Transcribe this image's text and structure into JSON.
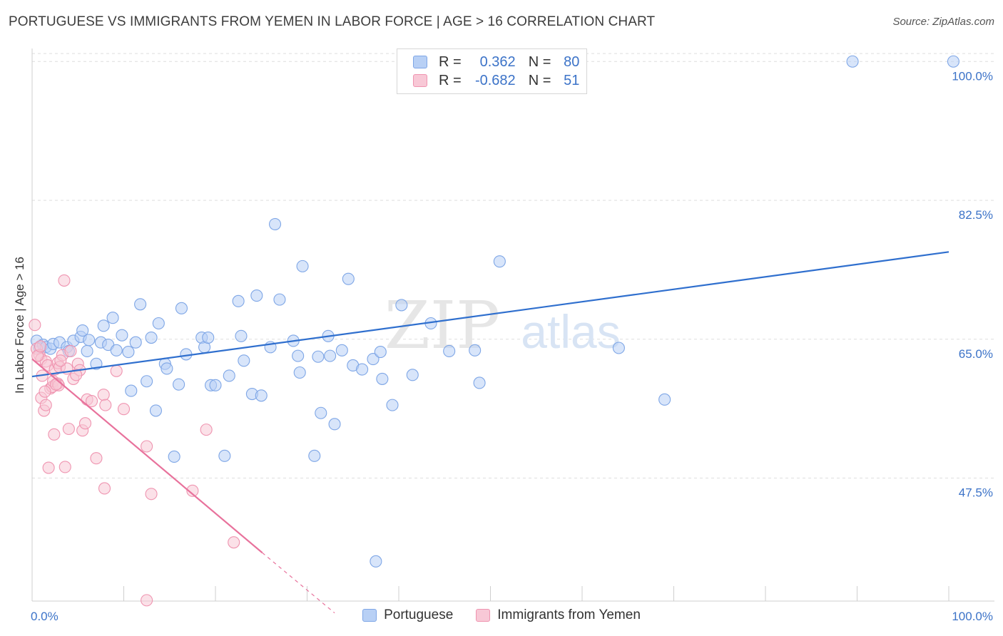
{
  "header": {
    "title": "PORTUGUESE VS IMMIGRANTS FROM YEMEN IN LABOR FORCE | AGE > 16 CORRELATION CHART",
    "source": "Source: ZipAtlas.com"
  },
  "watermark": {
    "zip": "ZIP",
    "atlas": "atlas"
  },
  "legend": {
    "rows": [
      {
        "r_label": "R =",
        "r_value": "0.362",
        "n_label": "N =",
        "n_value": "80"
      },
      {
        "r_label": "R =",
        "r_value": "-0.682",
        "n_label": "N =",
        "n_value": "51"
      }
    ]
  },
  "bottom_legend": {
    "series1": "Portuguese",
    "series2": "Immigrants from Yemen"
  },
  "colors": {
    "blue_fill": "#b8d0f5",
    "blue_stroke": "#7ea6e6",
    "blue_line": "#2f6fce",
    "pink_fill": "#f8c8d6",
    "pink_stroke": "#ef94b0",
    "pink_line": "#e8729c",
    "tick_text": "#3c73c8",
    "grid": "#dedede"
  },
  "chart_data": {
    "type": "scatter",
    "title": "PORTUGUESE VS IMMIGRANTS FROM YEMEN IN LABOR FORCE | AGE > 16 CORRELATION CHART",
    "xlabel": "",
    "ylabel": "In Labor Force | Age > 16",
    "xlim": [
      0,
      100
    ],
    "ylim": [
      32,
      102
    ],
    "x_tick_labels": [
      "0.0%",
      "100.0%"
    ],
    "y_ticks": [
      47.5,
      65.0,
      82.5,
      100.0
    ],
    "y_tick_labels": [
      "47.5%",
      "65.0%",
      "82.5%",
      "100.0%"
    ],
    "grid": true,
    "legend_position": "top-center",
    "series": [
      {
        "name": "Portuguese",
        "r": 0.362,
        "n": 80,
        "trend": {
          "x": [
            0,
            100
          ],
          "y": [
            60.3,
            76.0
          ]
        },
        "points": [
          [
            0.5,
            64.8
          ],
          [
            0.8,
            63.9
          ],
          [
            1.2,
            64.3
          ],
          [
            1.5,
            64.0
          ],
          [
            2.0,
            63.8
          ],
          [
            2.3,
            64.4
          ],
          [
            3.0,
            64.6
          ],
          [
            3.8,
            64.0
          ],
          [
            4.0,
            63.5
          ],
          [
            4.5,
            64.8
          ],
          [
            5.3,
            65.3
          ],
          [
            5.5,
            66.1
          ],
          [
            6.0,
            63.5
          ],
          [
            6.2,
            64.9
          ],
          [
            7.0,
            61.9
          ],
          [
            7.5,
            64.6
          ],
          [
            7.8,
            66.7
          ],
          [
            8.3,
            64.3
          ],
          [
            8.8,
            67.7
          ],
          [
            9.2,
            63.6
          ],
          [
            9.8,
            65.5
          ],
          [
            10.5,
            63.4
          ],
          [
            10.8,
            58.5
          ],
          [
            11.3,
            64.6
          ],
          [
            11.8,
            69.4
          ],
          [
            12.5,
            59.7
          ],
          [
            13.0,
            65.2
          ],
          [
            13.5,
            56.0
          ],
          [
            13.8,
            67.0
          ],
          [
            14.5,
            61.9
          ],
          [
            14.7,
            61.3
          ],
          [
            15.5,
            50.2
          ],
          [
            16.0,
            59.3
          ],
          [
            16.3,
            68.9
          ],
          [
            16.8,
            63.1
          ],
          [
            18.5,
            65.2
          ],
          [
            18.8,
            64.0
          ],
          [
            19.2,
            65.2
          ],
          [
            19.5,
            59.2
          ],
          [
            20.0,
            59.2
          ],
          [
            21.0,
            50.3
          ],
          [
            21.5,
            60.4
          ],
          [
            22.5,
            69.8
          ],
          [
            22.8,
            65.4
          ],
          [
            23.1,
            62.3
          ],
          [
            24.0,
            58.1
          ],
          [
            24.5,
            70.5
          ],
          [
            25.0,
            57.9
          ],
          [
            26.0,
            64.0
          ],
          [
            26.5,
            79.5
          ],
          [
            27.0,
            70.0
          ],
          [
            28.5,
            64.8
          ],
          [
            29.0,
            62.9
          ],
          [
            29.2,
            60.8
          ],
          [
            29.5,
            74.2
          ],
          [
            30.8,
            50.3
          ],
          [
            31.2,
            62.8
          ],
          [
            31.5,
            55.7
          ],
          [
            32.3,
            65.4
          ],
          [
            32.5,
            62.9
          ],
          [
            33.0,
            54.3
          ],
          [
            33.8,
            63.6
          ],
          [
            34.5,
            72.6
          ],
          [
            35.0,
            61.7
          ],
          [
            36.0,
            61.2
          ],
          [
            37.2,
            62.5
          ],
          [
            37.5,
            37.0
          ],
          [
            38.0,
            63.4
          ],
          [
            38.2,
            60.0
          ],
          [
            39.3,
            56.7
          ],
          [
            40.3,
            69.3
          ],
          [
            41.5,
            60.5
          ],
          [
            43.5,
            67.0
          ],
          [
            45.5,
            63.5
          ],
          [
            48.3,
            63.6
          ],
          [
            48.8,
            59.5
          ],
          [
            51.0,
            74.8
          ],
          [
            64.0,
            63.9
          ],
          [
            69.0,
            57.4
          ],
          [
            89.5,
            100.0
          ],
          [
            100.5,
            100.0
          ]
        ]
      },
      {
        "name": "Immigrants from Yemen",
        "r": -0.682,
        "n": 51,
        "trend": {
          "x": [
            0,
            25.1
          ],
          "y": [
            62.5,
            38.1
          ]
        },
        "trend_dashed": {
          "x": [
            25.1,
            33.0
          ],
          "y": [
            38.1,
            30.5
          ]
        },
        "points": [
          [
            0.3,
            66.8
          ],
          [
            0.5,
            63.8
          ],
          [
            0.8,
            63.0
          ],
          [
            1.0,
            62.5
          ],
          [
            1.0,
            57.6
          ],
          [
            1.3,
            56.0
          ],
          [
            1.5,
            56.7
          ],
          [
            1.5,
            62.2
          ],
          [
            1.7,
            61.7
          ],
          [
            1.8,
            48.8
          ],
          [
            2.0,
            58.8
          ],
          [
            2.2,
            59.0
          ],
          [
            2.3,
            59.7
          ],
          [
            2.4,
            53.0
          ],
          [
            2.5,
            61.2
          ],
          [
            2.8,
            59.4
          ],
          [
            2.8,
            62.0
          ],
          [
            2.9,
            59.2
          ],
          [
            3.0,
            61.5
          ],
          [
            3.3,
            63.0
          ],
          [
            3.5,
            72.4
          ],
          [
            3.6,
            48.9
          ],
          [
            3.8,
            61.3
          ],
          [
            4.0,
            53.7
          ],
          [
            4.2,
            63.5
          ],
          [
            4.5,
            60.0
          ],
          [
            5.0,
            61.9
          ],
          [
            5.2,
            61.1
          ],
          [
            5.5,
            53.5
          ],
          [
            5.8,
            54.4
          ],
          [
            6.0,
            57.4
          ],
          [
            7.0,
            50.0
          ],
          [
            7.8,
            58.0
          ],
          [
            7.9,
            46.2
          ],
          [
            8.0,
            56.7
          ],
          [
            9.2,
            61.0
          ],
          [
            10.0,
            56.2
          ],
          [
            12.5,
            51.5
          ],
          [
            13.0,
            45.5
          ],
          [
            17.5,
            45.9
          ],
          [
            19.0,
            53.6
          ],
          [
            22.0,
            39.4
          ],
          [
            12.5,
            32.1
          ],
          [
            0.6,
            62.9
          ],
          [
            0.9,
            64.1
          ],
          [
            1.1,
            60.4
          ],
          [
            1.4,
            58.4
          ],
          [
            2.6,
            59.3
          ],
          [
            3.1,
            62.3
          ],
          [
            4.8,
            60.5
          ],
          [
            6.5,
            57.2
          ]
        ]
      }
    ]
  }
}
